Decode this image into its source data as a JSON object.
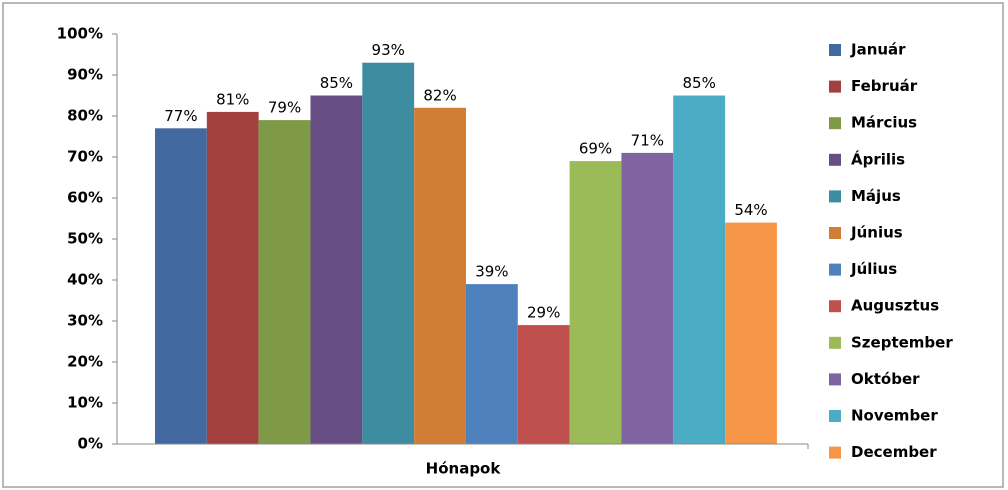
{
  "chart_data": {
    "type": "bar",
    "x_label": "Hónapok",
    "categories": [
      "Hónapok"
    ],
    "series": [
      {
        "name": "Január",
        "color": "#41699f",
        "values": [
          77
        ],
        "value_labels": [
          "77%"
        ]
      },
      {
        "name": "Február",
        "color": "#a2403d",
        "values": [
          81
        ],
        "value_labels": [
          "81%"
        ]
      },
      {
        "name": "Március",
        "color": "#7e9a47",
        "values": [
          79
        ],
        "value_labels": [
          "79%"
        ]
      },
      {
        "name": "Április",
        "color": "#674f86",
        "values": [
          85
        ],
        "value_labels": [
          "85%"
        ]
      },
      {
        "name": "Május",
        "color": "#3d8c9f",
        "values": [
          93
        ],
        "value_labels": [
          "93%"
        ]
      },
      {
        "name": "Június",
        "color": "#d07d36",
        "values": [
          82
        ],
        "value_labels": [
          "82%"
        ]
      },
      {
        "name": "Július",
        "color": "#4f81bd",
        "values": [
          39
        ],
        "value_labels": [
          "39%"
        ]
      },
      {
        "name": "Augusztus",
        "color": "#c0504d",
        "values": [
          29
        ],
        "value_labels": [
          "29%"
        ]
      },
      {
        "name": "Szeptember",
        "color": "#9bbb59",
        "values": [
          69
        ],
        "value_labels": [
          "69%"
        ]
      },
      {
        "name": "Október",
        "color": "#8064a2",
        "values": [
          71
        ],
        "value_labels": [
          "71%"
        ]
      },
      {
        "name": "November",
        "color": "#4bacc6",
        "values": [
          85
        ],
        "value_labels": [
          "85%"
        ]
      },
      {
        "name": "December",
        "color": "#f79646",
        "values": [
          54
        ],
        "value_labels": [
          "54%"
        ]
      }
    ],
    "ylim": [
      0,
      100
    ],
    "yticks": [
      {
        "value": 0,
        "label": "0%"
      },
      {
        "value": 10,
        "label": "10%"
      },
      {
        "value": 20,
        "label": "20%"
      },
      {
        "value": 30,
        "label": "30%"
      },
      {
        "value": 40,
        "label": "40%"
      },
      {
        "value": 50,
        "label": "50%"
      },
      {
        "value": 60,
        "label": "60%"
      },
      {
        "value": 70,
        "label": "70%"
      },
      {
        "value": 80,
        "label": "80%"
      },
      {
        "value": 90,
        "label": "90%"
      },
      {
        "value": 100,
        "label": "100%"
      }
    ],
    "grid": false,
    "legend": "right"
  }
}
